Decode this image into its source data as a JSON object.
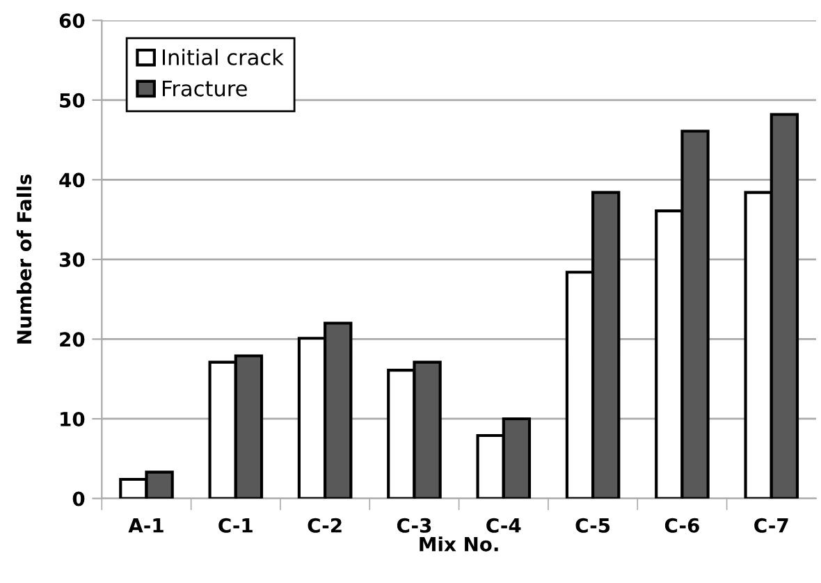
{
  "chart_data": {
    "type": "bar",
    "xlabel": "Mix No.",
    "ylabel": "Number of Falls",
    "categories": [
      "A-1",
      "C-1",
      "C-2",
      "C-3",
      "C-4",
      "C-5",
      "C-6",
      "C-7"
    ],
    "series": [
      {
        "name": "Initial crack",
        "color": "#ffffff",
        "values": [
          2.4,
          17.1,
          20.1,
          16.1,
          7.9,
          28.4,
          36.1,
          38.4
        ]
      },
      {
        "name": "Fracture",
        "color": "#595959",
        "values": [
          3.3,
          17.9,
          22.0,
          17.1,
          10.0,
          38.4,
          46.1,
          48.2
        ]
      }
    ],
    "ylim": [
      0,
      60
    ],
    "yticks": [
      0,
      10,
      20,
      30,
      40,
      50,
      60
    ],
    "grid": "y",
    "legend": "top left"
  }
}
